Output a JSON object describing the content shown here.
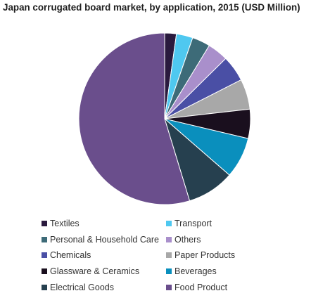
{
  "chart_data": {
    "type": "pie",
    "title": "Japan corrugated board market, by application, 2015 (USD Million)",
    "categories": [
      "Textiles",
      "Transport",
      "Personal & Household Care",
      "Others",
      "Chemicals",
      "Paper Products",
      "Glassware & Ceramics",
      "Beverages",
      "Electrical Goods",
      "Food Product"
    ],
    "values": [
      2.2,
      3.1,
      3.4,
      3.9,
      4.9,
      5.7,
      5.5,
      7.7,
      8.9,
      54.7
    ],
    "colors": [
      "#2a1a3e",
      "#4fc8f0",
      "#3d6b78",
      "#a98fcb",
      "#4a4fa5",
      "#a8a8a8",
      "#1a0f1e",
      "#0a8fbd",
      "#26404f",
      "#6a4e8c"
    ],
    "start_angle_deg": 0,
    "direction": "clockwise",
    "legend_position": "bottom"
  }
}
